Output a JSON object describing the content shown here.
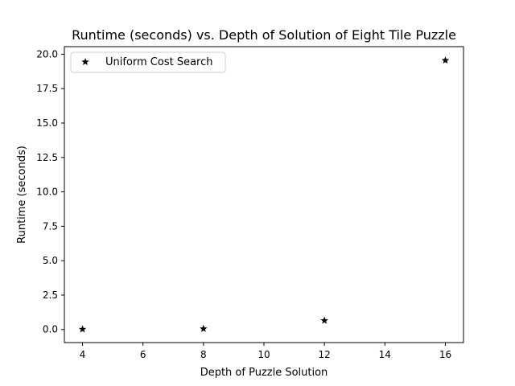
{
  "chart_data": {
    "type": "scatter",
    "title": "Runtime (seconds) vs. Depth of Solution of Eight Tile Puzzle",
    "xlabel": "Depth of Puzzle Solution",
    "ylabel": "Runtime (seconds)",
    "xlim": [
      3.4,
      16.6
    ],
    "ylim": [
      -0.95,
      20.55
    ],
    "xticks": [
      4,
      6,
      8,
      10,
      12,
      14,
      16
    ],
    "xtick_labels": [
      "4",
      "6",
      "8",
      "10",
      "12",
      "14",
      "16"
    ],
    "yticks": [
      0.0,
      2.5,
      5.0,
      7.5,
      10.0,
      12.5,
      15.0,
      17.5,
      20.0
    ],
    "ytick_labels": [
      "0.0",
      "2.5",
      "5.0",
      "7.5",
      "10.0",
      "12.5",
      "15.0",
      "17.5",
      "20.0"
    ],
    "grid": false,
    "legend_position": "top-left",
    "series": [
      {
        "name": "Uniform Cost Search",
        "marker": "star",
        "color": "#000000",
        "x": [
          4,
          8,
          12,
          16
        ],
        "y": [
          0.02,
          0.05,
          0.65,
          19.55
        ]
      }
    ]
  }
}
